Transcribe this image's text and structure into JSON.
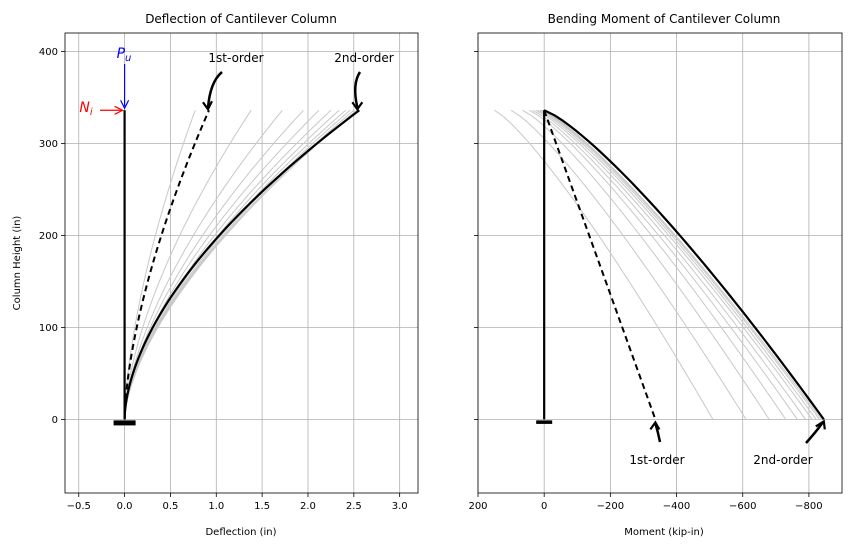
{
  "chart_data": [
    {
      "type": "line",
      "title": "Deflection of Cantilever Column",
      "xlabel": "Deflection (in)",
      "ylabel": "Column Height (in)",
      "xlim": [
        -0.65,
        3.2
      ],
      "ylim": [
        -80,
        420
      ],
      "xticks": [
        -0.5,
        0.0,
        0.5,
        1.0,
        1.5,
        2.0,
        2.5,
        3.0
      ],
      "xtick_labels": [
        "−0.5",
        "0.0",
        "0.5",
        "1.0",
        "1.5",
        "2.0",
        "2.5",
        "3.0"
      ],
      "yticks": [
        0,
        100,
        200,
        300,
        400
      ],
      "ytick_labels": [
        "0",
        "100",
        "200",
        "300",
        "400"
      ],
      "grid": true,
      "column_height": 336,
      "iteration_tip_deflections": [
        0.77,
        1.38,
        1.72,
        1.95,
        2.12,
        2.25,
        2.34,
        2.41,
        2.46,
        2.5,
        2.53
      ],
      "first_order_tip": 0.92,
      "second_order_tip": 2.56,
      "annotations": {
        "first_order": "1st-order",
        "second_order": "2nd-order",
        "pu": "P",
        "pu_sub": "u",
        "ni": "N",
        "ni_sub": "i"
      },
      "colors": {
        "final": "#000000",
        "iteration": "#c8c8c8",
        "pu": "#0000ff",
        "ni": "#ff0000"
      }
    },
    {
      "type": "line",
      "title": "Bending Moment of Cantilever Column",
      "xlabel": "Moment (kip-in)",
      "ylabel": "",
      "xlim": [
        200,
        -900
      ],
      "ylim": [
        -80,
        420
      ],
      "xticks": [
        200,
        0,
        -200,
        -400,
        -600,
        -800
      ],
      "xtick_labels": [
        "200",
        "0",
        "−200",
        "−400",
        "−600",
        "−800"
      ],
      "yticks": [
        0,
        100,
        200,
        300,
        400
      ],
      "grid": true,
      "column_height": 336,
      "first_order_base": -336,
      "second_order_base": -845,
      "iteration_base_moments": [
        -510,
        -610,
        -680,
        -730,
        -765,
        -790,
        -810,
        -822,
        -832,
        -838
      ],
      "iteration_top_moments": [
        150,
        100,
        65,
        45,
        35,
        25,
        18,
        12,
        8,
        5
      ],
      "annotations": {
        "first_order": "1st-order",
        "second_order": "2nd-order"
      },
      "colors": {
        "final": "#000000",
        "iteration": "#c8c8c8"
      }
    }
  ]
}
